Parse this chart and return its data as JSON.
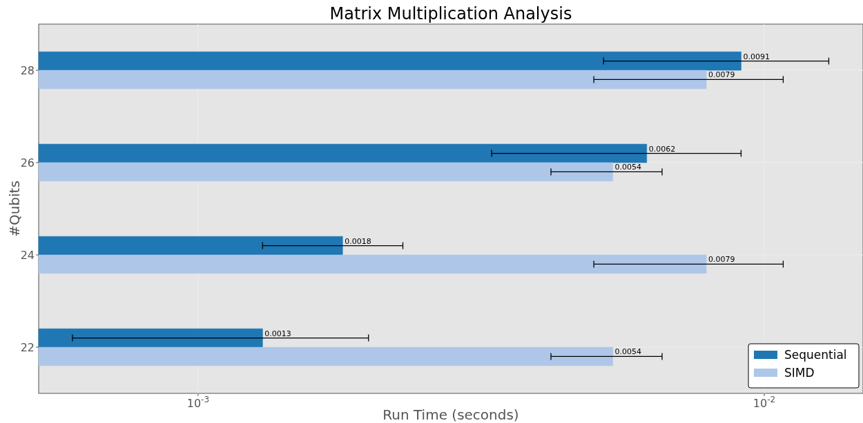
{
  "chart_data": {
    "type": "bar",
    "orientation": "horizontal",
    "title": "Matrix Multiplication Analysis",
    "xlabel": "Run Time (seconds)",
    "ylabel": "#Qubits",
    "categories": [
      "28",
      "26",
      "24",
      "22"
    ],
    "series": [
      {
        "name": "Sequential",
        "color": "#1f77b4",
        "values": [
          0.0091,
          0.0062,
          0.0018,
          0.0013
        ],
        "errors": [
          0.0039,
          0.0029,
          0.0005,
          0.0007
        ]
      },
      {
        "name": "SIMD",
        "color": "#aec7e8",
        "values": [
          0.0079,
          0.0054,
          0.0079,
          0.0054
        ],
        "errors": [
          0.0029,
          0.0012,
          0.0029,
          0.0012
        ]
      }
    ],
    "log": "x",
    "xlim": [
      0.000523,
      0.01494
    ],
    "xticks": [
      {
        "value": 0.001,
        "label": "10$^{-3}$"
      },
      {
        "value": 0.01,
        "label": "10$^{-2}$"
      }
    ],
    "grid": true,
    "data_labels": true,
    "legend": "bottom right"
  }
}
